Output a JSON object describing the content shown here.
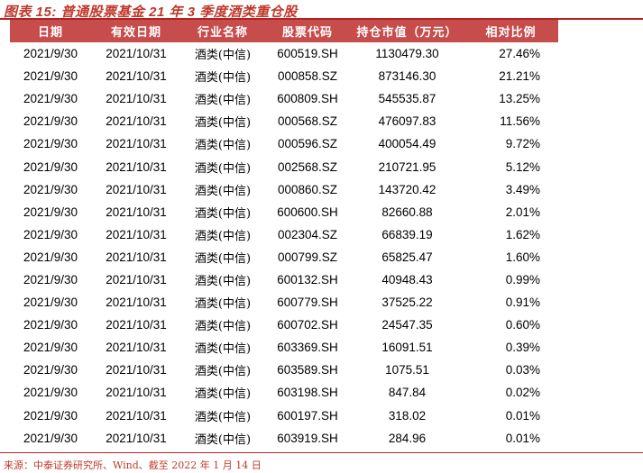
{
  "title": "图表 15:  普通股票基金 21 年 3 季度酒类重仓股",
  "columns": [
    "日期",
    "有效日期",
    "行业名称",
    "股票代码",
    "持仓市值（万元）",
    "相对比例"
  ],
  "rows": [
    [
      "2021/9/30",
      "2021/10/31",
      "酒类(中信)",
      "600519.SH",
      "1130479.30",
      "27.46%"
    ],
    [
      "2021/9/30",
      "2021/10/31",
      "酒类(中信)",
      "000858.SZ",
      "873146.30",
      "21.21%"
    ],
    [
      "2021/9/30",
      "2021/10/31",
      "酒类(中信)",
      "600809.SH",
      "545535.87",
      "13.25%"
    ],
    [
      "2021/9/30",
      "2021/10/31",
      "酒类(中信)",
      "000568.SZ",
      "476097.83",
      "11.56%"
    ],
    [
      "2021/9/30",
      "2021/10/31",
      "酒类(中信)",
      "000596.SZ",
      "400054.49",
      "9.72%"
    ],
    [
      "2021/9/30",
      "2021/10/31",
      "酒类(中信)",
      "002568.SZ",
      "210721.95",
      "5.12%"
    ],
    [
      "2021/9/30",
      "2021/10/31",
      "酒类(中信)",
      "000860.SZ",
      "143720.42",
      "3.49%"
    ],
    [
      "2021/9/30",
      "2021/10/31",
      "酒类(中信)",
      "600600.SH",
      "82660.88",
      "2.01%"
    ],
    [
      "2021/9/30",
      "2021/10/31",
      "酒类(中信)",
      "002304.SZ",
      "66839.19",
      "1.62%"
    ],
    [
      "2021/9/30",
      "2021/10/31",
      "酒类(中信)",
      "000799.SZ",
      "65825.47",
      "1.60%"
    ],
    [
      "2021/9/30",
      "2021/10/31",
      "酒类(中信)",
      "600132.SH",
      "40948.43",
      "0.99%"
    ],
    [
      "2021/9/30",
      "2021/10/31",
      "酒类(中信)",
      "600779.SH",
      "37525.22",
      "0.91%"
    ],
    [
      "2021/9/30",
      "2021/10/31",
      "酒类(中信)",
      "600702.SH",
      "24547.35",
      "0.60%"
    ],
    [
      "2021/9/30",
      "2021/10/31",
      "酒类(中信)",
      "603369.SH",
      "16091.51",
      "0.39%"
    ],
    [
      "2021/9/30",
      "2021/10/31",
      "酒类(中信)",
      "603589.SH",
      "1075.51",
      "0.03%"
    ],
    [
      "2021/9/30",
      "2021/10/31",
      "酒类(中信)",
      "603198.SH",
      "847.84",
      "0.02%"
    ],
    [
      "2021/9/30",
      "2021/10/31",
      "酒类(中信)",
      "600197.SH",
      "318.02",
      "0.01%"
    ],
    [
      "2021/9/30",
      "2021/10/31",
      "酒类(中信)",
      "603919.SH",
      "284.96",
      "0.01%"
    ]
  ],
  "source": "来源：中泰证券研究所、Wind、截至 2022 年 1 月 14 日",
  "colors": {
    "accent": "#c74c4c",
    "title": "#c0392b"
  }
}
